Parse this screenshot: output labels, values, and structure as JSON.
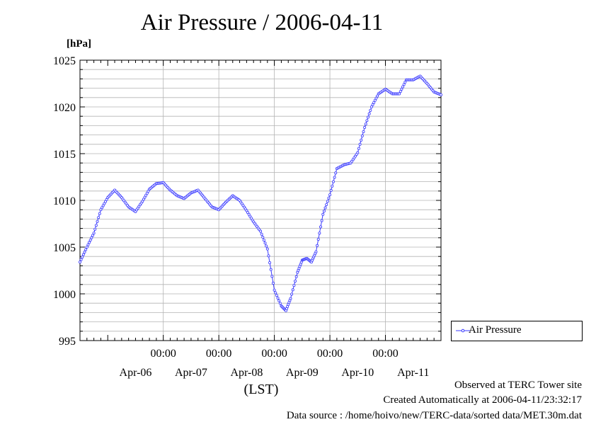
{
  "title": "Air Pressure / 2006-04-11",
  "unit_label": "[hPa]",
  "legend": {
    "label": "Air Pressure",
    "color": "#3a3aff"
  },
  "footer": {
    "observed": "Observed at TERC Tower site",
    "created": "Created Automatically at 2006-04-11/23:32:17",
    "source": "Data source : /home/hoivo/new/TERC-data/sorted  data/MET.30m.dat"
  },
  "chart_data": {
    "type": "line",
    "title": "Air Pressure / 2006-04-11",
    "xlabel": "(LST)",
    "ylabel": "[hPa]",
    "ylim": [
      995,
      1025
    ],
    "yticks": [
      995,
      1000,
      1005,
      1010,
      1015,
      1020,
      1025
    ],
    "xlim": [
      "2006-04-05T12:00",
      "2006-04-12T00:00"
    ],
    "x_time_ticks": [
      {
        "time": "2006-04-07T00:00",
        "label": "00:00"
      },
      {
        "time": "2006-04-08T00:00",
        "label": "00:00"
      },
      {
        "time": "2006-04-09T00:00",
        "label": "00:00"
      },
      {
        "time": "2006-04-10T00:00",
        "label": "00:00"
      },
      {
        "time": "2006-04-11T00:00",
        "label": "00:00"
      }
    ],
    "x_day_labels": [
      {
        "time": "2006-04-06T12:00",
        "label": "Apr-06"
      },
      {
        "time": "2006-04-07T12:00",
        "label": "Apr-07"
      },
      {
        "time": "2006-04-08T12:00",
        "label": "Apr-08"
      },
      {
        "time": "2006-04-09T12:00",
        "label": "Apr-09"
      },
      {
        "time": "2006-04-10T12:00",
        "label": "Apr-10"
      },
      {
        "time": "2006-04-11T12:00",
        "label": "Apr-11"
      }
    ],
    "grid": true,
    "legend_position": "right-bottom",
    "series": [
      {
        "name": "Air Pressure",
        "marker": "circle",
        "points": [
          [
            "2006-04-05T12:00",
            1003.4
          ],
          [
            "2006-04-05T15:00",
            1005.0
          ],
          [
            "2006-04-05T18:00",
            1006.5
          ],
          [
            "2006-04-05T21:00",
            1009.0
          ],
          [
            "2006-04-06T00:00",
            1010.3
          ],
          [
            "2006-04-06T03:00",
            1011.1
          ],
          [
            "2006-04-06T06:00",
            1010.3
          ],
          [
            "2006-04-06T09:00",
            1009.3
          ],
          [
            "2006-04-06T12:00",
            1008.8
          ],
          [
            "2006-04-06T15:00",
            1009.9
          ],
          [
            "2006-04-06T18:00",
            1011.2
          ],
          [
            "2006-04-06T21:00",
            1011.8
          ],
          [
            "2006-04-07T00:00",
            1011.9
          ],
          [
            "2006-04-07T03:00",
            1011.1
          ],
          [
            "2006-04-07T06:00",
            1010.5
          ],
          [
            "2006-04-07T09:00",
            1010.2
          ],
          [
            "2006-04-07T12:00",
            1010.8
          ],
          [
            "2006-04-07T15:00",
            1011.1
          ],
          [
            "2006-04-07T18:00",
            1010.2
          ],
          [
            "2006-04-07T21:00",
            1009.3
          ],
          [
            "2006-04-08T00:00",
            1009.0
          ],
          [
            "2006-04-08T03:00",
            1009.8
          ],
          [
            "2006-04-08T06:00",
            1010.5
          ],
          [
            "2006-04-08T09:00",
            1010.0
          ],
          [
            "2006-04-08T12:00",
            1008.9
          ],
          [
            "2006-04-08T15:00",
            1007.7
          ],
          [
            "2006-04-08T18:00",
            1006.7
          ],
          [
            "2006-04-08T21:00",
            1004.8
          ],
          [
            "2006-04-09T00:00",
            1000.4
          ],
          [
            "2006-04-09T03:00",
            998.7
          ],
          [
            "2006-04-09T05:00",
            998.2
          ],
          [
            "2006-04-09T07:00",
            999.5
          ],
          [
            "2006-04-09T10:00",
            1002.3
          ],
          [
            "2006-04-09T12:00",
            1003.6
          ],
          [
            "2006-04-09T14:00",
            1003.8
          ],
          [
            "2006-04-09T16:00",
            1003.4
          ],
          [
            "2006-04-09T18:00",
            1004.5
          ],
          [
            "2006-04-09T21:00",
            1008.5
          ],
          [
            "2006-04-10T00:00",
            1010.6
          ],
          [
            "2006-04-10T03:00",
            1013.4
          ],
          [
            "2006-04-10T06:00",
            1013.8
          ],
          [
            "2006-04-10T09:00",
            1014.0
          ],
          [
            "2006-04-10T12:00",
            1015.1
          ],
          [
            "2006-04-10T15:00",
            1017.8
          ],
          [
            "2006-04-10T18:00",
            1020.0
          ],
          [
            "2006-04-10T21:00",
            1021.4
          ],
          [
            "2006-04-11T00:00",
            1021.9
          ],
          [
            "2006-04-11T03:00",
            1021.4
          ],
          [
            "2006-04-11T06:00",
            1021.4
          ],
          [
            "2006-04-11T09:00",
            1022.9
          ],
          [
            "2006-04-11T12:00",
            1022.9
          ],
          [
            "2006-04-11T15:00",
            1023.3
          ],
          [
            "2006-04-11T18:00",
            1022.5
          ],
          [
            "2006-04-11T21:00",
            1021.6
          ],
          [
            "2006-04-12T00:00",
            1021.3
          ]
        ]
      }
    ]
  }
}
